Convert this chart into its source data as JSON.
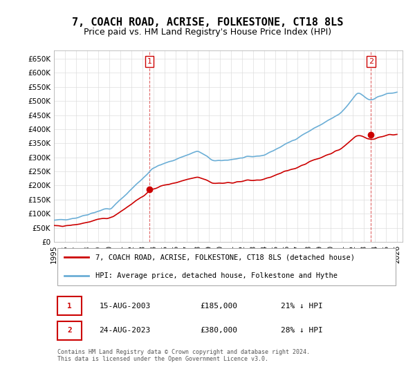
{
  "title": "7, COACH ROAD, ACRISE, FOLKESTONE, CT18 8LS",
  "subtitle": "Price paid vs. HM Land Registry's House Price Index (HPI)",
  "title_fontsize": 11,
  "subtitle_fontsize": 9,
  "ylabel_ticks": [
    "£0",
    "£50K",
    "£100K",
    "£150K",
    "£200K",
    "£250K",
    "£300K",
    "£350K",
    "£400K",
    "£450K",
    "£500K",
    "£550K",
    "£600K",
    "£650K"
  ],
  "ytick_vals": [
    0,
    50000,
    100000,
    150000,
    200000,
    250000,
    300000,
    350000,
    400000,
    450000,
    500000,
    550000,
    600000,
    650000
  ],
  "ylim": [
    0,
    680000
  ],
  "xlim_start": 1995.0,
  "xlim_end": 2026.5,
  "hpi_color": "#6baed6",
  "price_color": "#cc0000",
  "marker_color": "#cc0000",
  "sale1_x": 2003.62,
  "sale1_y": 185000,
  "sale1_label": "1",
  "sale2_x": 2023.64,
  "sale2_y": 380000,
  "sale2_label": "2",
  "dashed_line_color": "#cc0000",
  "dashed_line_alpha": 0.5,
  "legend_label_price": "7, COACH ROAD, ACRISE, FOLKESTONE, CT18 8LS (detached house)",
  "legend_label_hpi": "HPI: Average price, detached house, Folkestone and Hythe",
  "table_row1": [
    "1",
    "15-AUG-2003",
    "£185,000",
    "21% ↓ HPI"
  ],
  "table_row2": [
    "2",
    "24-AUG-2023",
    "£380,000",
    "28% ↓ HPI"
  ],
  "footnote": "Contains HM Land Registry data © Crown copyright and database right 2024.\nThis data is licensed under the Open Government Licence v3.0.",
  "bg_color": "#ffffff",
  "grid_color": "#dddddd",
  "axis_spine_color": "#aaaaaa"
}
